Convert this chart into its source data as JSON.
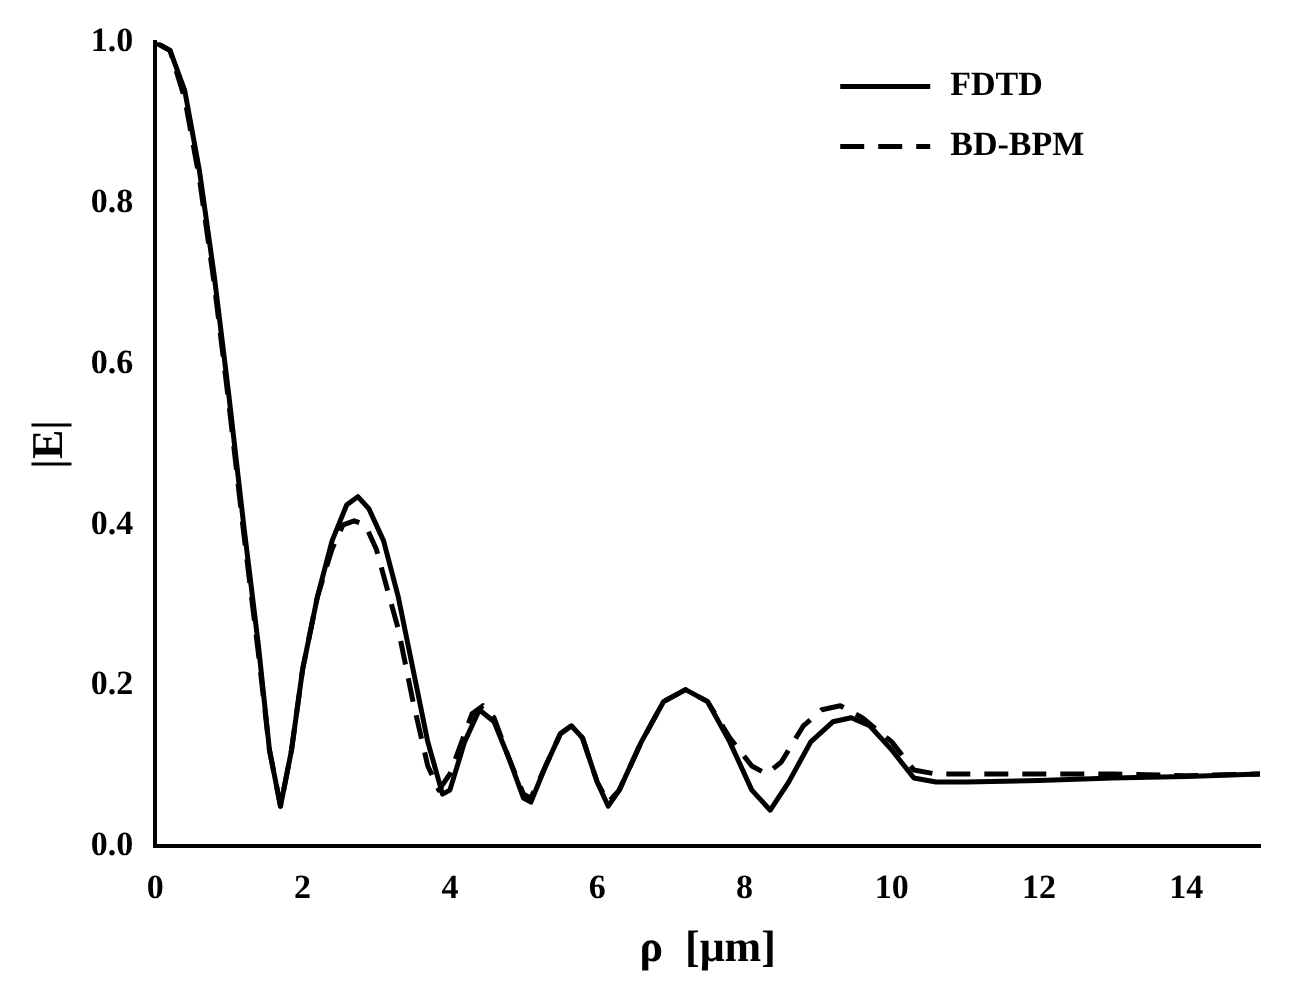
{
  "chart_data": {
    "type": "line",
    "xlabel": "ρ  [μm]",
    "ylabel": "|E|",
    "xlim": [
      0,
      15
    ],
    "xticks": [
      0,
      2,
      4,
      6,
      8,
      10,
      12,
      14
    ],
    "ylim": [
      0,
      1
    ],
    "yticks": [
      {
        "value": 0,
        "label": "0.0"
      },
      0.2,
      0.4,
      0.6,
      0.8,
      {
        "value": 1,
        "label": "1.0"
      }
    ],
    "legend": "top right",
    "grid": false,
    "marker": "none",
    "series": [
      {
        "name": "FDTD",
        "color": "#000000",
        "line_style": "solid",
        "x": [
          0,
          0.2,
          0.4,
          0.6,
          0.8,
          1.0,
          1.2,
          1.4,
          1.55,
          1.7,
          1.85,
          2.0,
          2.2,
          2.4,
          2.6,
          2.75,
          2.9,
          3.1,
          3.3,
          3.5,
          3.7,
          3.9,
          4.0,
          4.2,
          4.4,
          4.6,
          4.8,
          5.0,
          5.1,
          5.3,
          5.5,
          5.65,
          5.8,
          6.0,
          6.15,
          6.3,
          6.6,
          6.9,
          7.2,
          7.5,
          7.8,
          8.1,
          8.35,
          8.6,
          8.9,
          9.2,
          9.45,
          9.7,
          10.0,
          10.3,
          10.6,
          11,
          12,
          13,
          14,
          15
        ],
        "values": [
          1.0,
          0.99,
          0.94,
          0.84,
          0.71,
          0.56,
          0.4,
          0.25,
          0.12,
          0.05,
          0.12,
          0.22,
          0.31,
          0.38,
          0.425,
          0.435,
          0.42,
          0.38,
          0.31,
          0.22,
          0.13,
          0.065,
          0.07,
          0.13,
          0.17,
          0.155,
          0.11,
          0.06,
          0.055,
          0.1,
          0.14,
          0.15,
          0.135,
          0.08,
          0.05,
          0.07,
          0.13,
          0.18,
          0.195,
          0.18,
          0.13,
          0.07,
          0.045,
          0.08,
          0.13,
          0.155,
          0.16,
          0.15,
          0.12,
          0.085,
          0.08,
          0.08,
          0.082,
          0.085,
          0.087,
          0.09
        ]
      },
      {
        "name": "BD-BPM",
        "color": "#000000",
        "line_style": "dashed",
        "x": [
          0,
          0.2,
          0.4,
          0.6,
          0.8,
          1.0,
          1.2,
          1.4,
          1.55,
          1.7,
          1.85,
          2.0,
          2.2,
          2.4,
          2.55,
          2.7,
          2.85,
          3.0,
          3.3,
          3.5,
          3.7,
          3.85,
          4.0,
          4.3,
          4.45,
          4.6,
          4.8,
          5.0,
          5.1,
          5.3,
          5.5,
          5.65,
          5.8,
          6.0,
          6.15,
          6.3,
          6.6,
          6.9,
          7.2,
          7.5,
          7.8,
          8.1,
          8.3,
          8.5,
          8.8,
          9.05,
          9.3,
          9.6,
          10.0,
          10.3,
          10.6,
          11,
          12,
          13,
          14,
          15
        ],
        "values": [
          1.0,
          0.99,
          0.93,
          0.83,
          0.7,
          0.55,
          0.39,
          0.24,
          0.12,
          0.05,
          0.12,
          0.22,
          0.31,
          0.37,
          0.4,
          0.405,
          0.4,
          0.37,
          0.27,
          0.18,
          0.1,
          0.07,
          0.09,
          0.165,
          0.175,
          0.16,
          0.11,
          0.065,
          0.06,
          0.1,
          0.14,
          0.15,
          0.135,
          0.08,
          0.055,
          0.07,
          0.13,
          0.18,
          0.195,
          0.18,
          0.135,
          0.1,
          0.09,
          0.105,
          0.15,
          0.17,
          0.175,
          0.16,
          0.13,
          0.095,
          0.09,
          0.09,
          0.09,
          0.09,
          0.088,
          0.09
        ]
      }
    ]
  }
}
